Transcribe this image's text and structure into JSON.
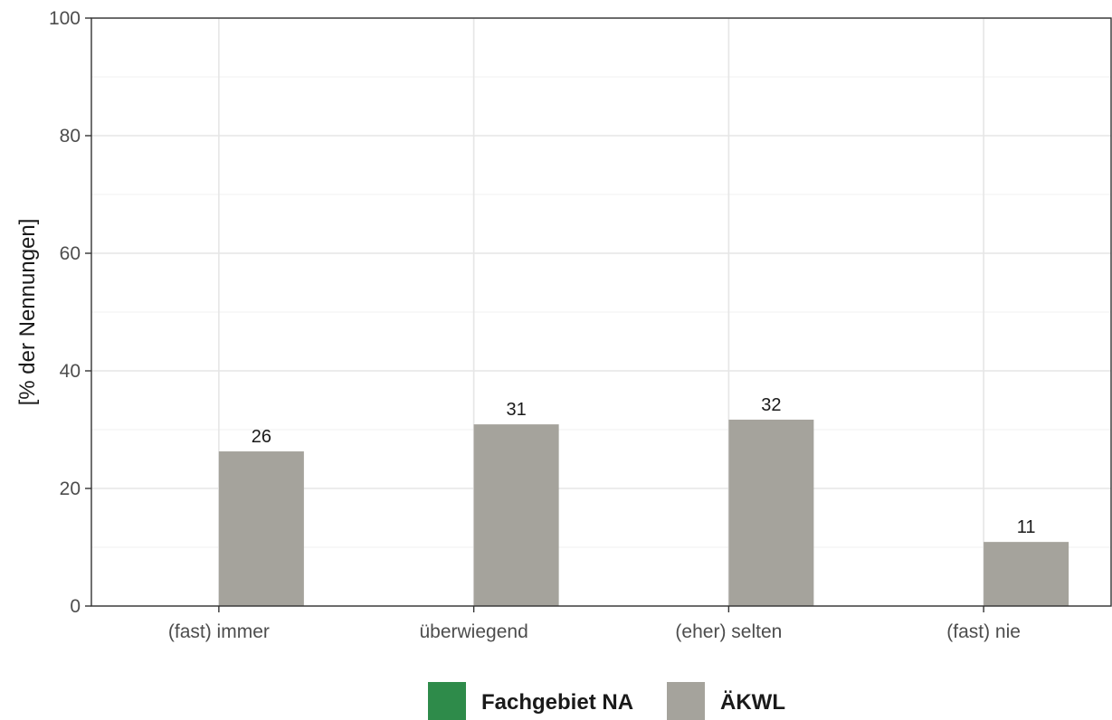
{
  "chart_data": {
    "type": "bar",
    "categories": [
      "(fast) immer",
      "überwiegend",
      "(eher) selten",
      "(fast) nie"
    ],
    "series": [
      {
        "name": "Fachgebiet NA",
        "color": "#2e8b4a",
        "values": [
          null,
          null,
          null,
          null
        ]
      },
      {
        "name": "ÄKWL",
        "color": "#a5a39c",
        "values": [
          26.3,
          30.9,
          31.7,
          10.9
        ],
        "labels": [
          "26",
          "31",
          "32",
          "11"
        ]
      }
    ],
    "ylabel": "[% der Nennungen]",
    "xlabel": "",
    "ylim": [
      0,
      100
    ],
    "yticks": [
      "0",
      "20",
      "40",
      "60",
      "80",
      "100"
    ],
    "grid": true,
    "legend_position": "bottom"
  }
}
